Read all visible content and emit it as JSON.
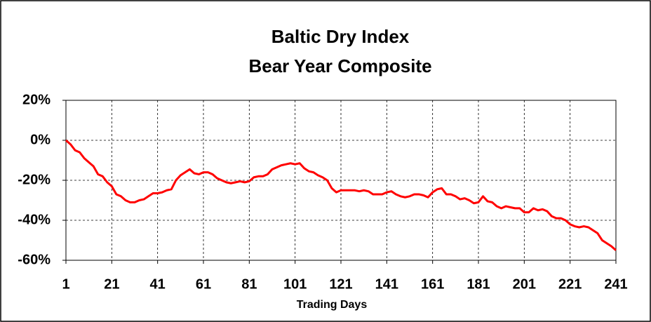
{
  "chart_data": {
    "type": "line",
    "title": [
      "Baltic  Dry  Index",
      "Bear  Year  Composite"
    ],
    "x_label": "Trading Days",
    "x": [
      1,
      3,
      5,
      7,
      9,
      11,
      13,
      15,
      17,
      19,
      21,
      23,
      25,
      27,
      29,
      31,
      33,
      35,
      37,
      39,
      41,
      43,
      45,
      47,
      49,
      51,
      53,
      55,
      57,
      59,
      61,
      63,
      65,
      67,
      69,
      71,
      73,
      75,
      77,
      79,
      81,
      83,
      85,
      87,
      89,
      91,
      93,
      95,
      97,
      99,
      101,
      103,
      105,
      107,
      109,
      111,
      113,
      115,
      117,
      119,
      121,
      123,
      125,
      127,
      129,
      131,
      133,
      135,
      137,
      139,
      141,
      143,
      145,
      147,
      149,
      151,
      153,
      155,
      157,
      159,
      161,
      163,
      165,
      167,
      169,
      171,
      173,
      175,
      177,
      179,
      181,
      183,
      185,
      187,
      189,
      191,
      193,
      195,
      197,
      199,
      201,
      203,
      205,
      207,
      209,
      211,
      213,
      215,
      217,
      219,
      221,
      223,
      225,
      227,
      229,
      231,
      233,
      235,
      237,
      239,
      241
    ],
    "series": [
      {
        "name": "Bear Year Composite",
        "color": "#ff0000",
        "values": [
          0,
          -2,
          -5,
          -6,
          -9,
          -11,
          -13,
          -17,
          -18,
          -21,
          -23,
          -27,
          -28,
          -30,
          -31,
          -31,
          -30,
          -29.5,
          -28,
          -26.5,
          -26.5,
          -26,
          -25,
          -24.5,
          -20,
          -17.5,
          -16,
          -14.5,
          -16.5,
          -17,
          -16,
          -16,
          -17,
          -19,
          -20,
          -21,
          -21.5,
          -21,
          -20.5,
          -21,
          -20.5,
          -18.5,
          -18,
          -18,
          -17,
          -14.5,
          -13.5,
          -12.5,
          -12,
          -11.5,
          -12,
          -11.5,
          -14,
          -15.5,
          -16,
          -17.5,
          -18.5,
          -20,
          -24,
          -26,
          -25,
          -25,
          -25,
          -25,
          -25.5,
          -25,
          -25.5,
          -27,
          -27,
          -27,
          -26,
          -25.5,
          -27,
          -28,
          -28.5,
          -28,
          -27,
          -27,
          -27.5,
          -28.5,
          -26,
          -24.5,
          -24,
          -27,
          -27,
          -28,
          -29.5,
          -29,
          -30,
          -31.5,
          -31,
          -28,
          -30.5,
          -31,
          -33,
          -34,
          -33,
          -33.5,
          -34,
          -34,
          -36,
          -36,
          -34,
          -35,
          -34.5,
          -35.5,
          -38,
          -39,
          -39,
          -40,
          -42,
          -43,
          -43.5,
          -43,
          -43.5,
          -45,
          -46.5,
          -50,
          -51.5,
          -53,
          -55
        ]
      }
    ],
    "xlim": [
      1,
      241
    ],
    "xticks": [
      1,
      21,
      41,
      61,
      81,
      101,
      121,
      141,
      161,
      181,
      201,
      221,
      241
    ],
    "ylim": [
      -60,
      20
    ],
    "yticks": [
      {
        "value": -60,
        "label": "-60%"
      },
      {
        "value": -40,
        "label": "-40%"
      },
      {
        "value": -20,
        "label": "-20%"
      },
      {
        "value": 0,
        "label": "0%"
      },
      {
        "value": 20,
        "label": "20%"
      }
    ],
    "grid": true
  }
}
